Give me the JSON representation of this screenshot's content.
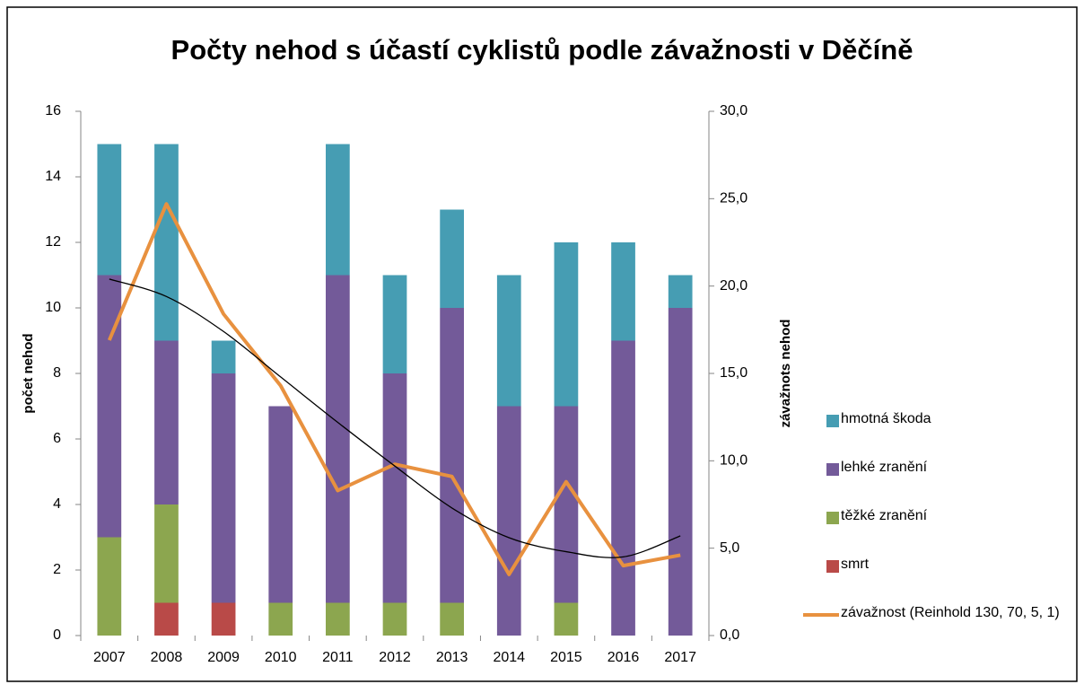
{
  "chart_data": {
    "type": "bar",
    "title": "Počty nehod s účastí cyklistů podle závažnosti v Děčíně",
    "y_label": "počet nehod",
    "y2_label": "závažnots nehod",
    "categories": [
      "2007",
      "2008",
      "2009",
      "2010",
      "2011",
      "2012",
      "2013",
      "2014",
      "2015",
      "2016",
      "2017"
    ],
    "series": [
      {
        "name": "smrt",
        "color": "#b94a48",
        "values": [
          0,
          1,
          1,
          0,
          0,
          0,
          0,
          0,
          0,
          0,
          0
        ]
      },
      {
        "name": "těžké zranění",
        "color": "#8ca64f",
        "values": [
          3,
          3,
          0,
          1,
          1,
          1,
          1,
          0,
          1,
          0,
          0
        ]
      },
      {
        "name": "lehké zranění",
        "color": "#735a99",
        "values": [
          8,
          5,
          7,
          6,
          10,
          7,
          9,
          7,
          6,
          9,
          10
        ]
      },
      {
        "name": "hmotná škoda",
        "color": "#469db3",
        "values": [
          4,
          6,
          1,
          0,
          4,
          3,
          3,
          4,
          5,
          3,
          1
        ]
      },
      {
        "name": "závažnost (Reinhold 130, 70, 5, 1)",
        "color": "#e8913f",
        "style": "line",
        "axis": "y2",
        "values": [
          16.9,
          24.7,
          18.4,
          14.3,
          8.3,
          9.8,
          9.1,
          3.5,
          8.8,
          4.0,
          4.6
        ]
      },
      {
        "color": "#000000",
        "style": "trendline",
        "axis": "y2",
        "values": [
          20.4,
          19.4,
          17.4,
          14.8,
          12.2,
          9.7,
          7.3,
          5.6,
          4.8,
          4.5,
          5.7
        ]
      }
    ],
    "ylim": [
      0,
      16
    ],
    "yticks": [
      0,
      2,
      4,
      6,
      8,
      10,
      12,
      14,
      16
    ],
    "y2lim": [
      0,
      30
    ],
    "y2ticks": [
      {
        "value": 0,
        "label": "0,0"
      },
      {
        "value": 5,
        "label": "5,0"
      },
      {
        "value": 10,
        "label": "10,0"
      },
      {
        "value": 15,
        "label": "15,0"
      },
      {
        "value": 20,
        "label": "20,0"
      },
      {
        "value": 25,
        "label": "25,0"
      },
      {
        "value": 30,
        "label": "30,0"
      }
    ],
    "legend": "right"
  }
}
